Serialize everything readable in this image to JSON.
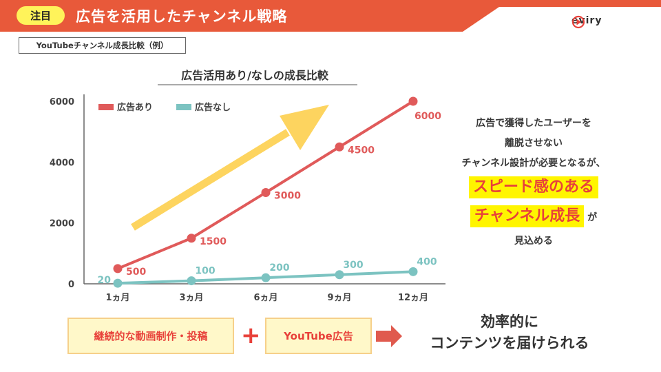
{
  "header": {
    "badge": "注目",
    "title": "広告を活用したチャンネル戦略",
    "logo_text": "eviry",
    "bg_color": "#e8593a"
  },
  "subtitle": "YouTubeチャンネル成長比較（例）",
  "chart_data": {
    "type": "line",
    "title": "広告活用あり/なしの成長比較",
    "categories": [
      "1ヵ月",
      "3ヵ月",
      "6ヵ月",
      "9ヵ月",
      "12ヵ月"
    ],
    "series": [
      {
        "name": "広告あり",
        "values": [
          500,
          1500,
          3000,
          4500,
          6000
        ],
        "labels": [
          "500",
          "1500",
          "3000",
          "4500",
          "6000"
        ],
        "color": "#e05a5a"
      },
      {
        "name": "広告なし",
        "values": [
          20,
          100,
          200,
          300,
          400
        ],
        "labels": [
          "20",
          "100",
          "200",
          "300",
          "400"
        ],
        "color": "#7cc3c1"
      }
    ],
    "yticks": [
      0,
      2000,
      4000,
      6000
    ],
    "ytick_labels": [
      "0",
      "2000",
      "4000",
      "6000"
    ],
    "ylim": [
      0,
      6000
    ],
    "legend": "top-left",
    "grid": false,
    "trend_arrow_color": "#fdd45f"
  },
  "right_text": {
    "line1": "広告で獲得したユーザーを",
    "line2": "離脱させない",
    "line3": "チャンネル設計が必要となるが、",
    "highlight1": "スピード感のある",
    "highlight2": "チャンネル成長",
    "suffix": "が",
    "line6": "見込める"
  },
  "bottom": {
    "box1": "継続的な動画制作・投稿",
    "plus": "+",
    "box2": "YouTube広告",
    "result_line1": "効率的に",
    "result_line2": "コンテンツを届けられる",
    "arrow_color": "#e05a4e"
  }
}
